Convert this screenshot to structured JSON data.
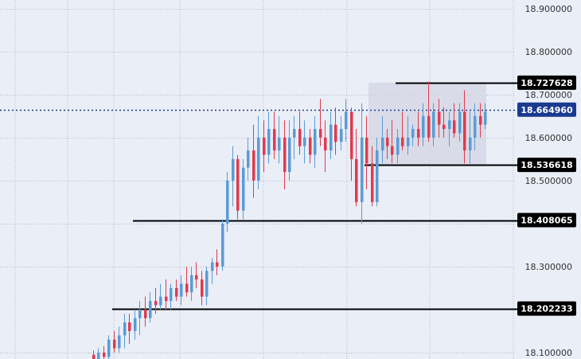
{
  "chart_data": {
    "type": "candlestick",
    "ylim": [
      18.085,
      18.92
    ],
    "grid": true,
    "colors": {
      "up": "#5b9bd5",
      "down": "#e03a4e",
      "background": "#eaeef7",
      "grid": "#b0b8cc",
      "current": "#1a3a8f",
      "level": "#000000",
      "range_box": "#d3d6e3"
    },
    "y_ticks": [
      "18.900000",
      "18.800000",
      "18.700000",
      "18.600000",
      "18.500000",
      "18.400000",
      "18.300000",
      "18.100000"
    ],
    "current_price": "18.664960",
    "levels": [
      {
        "label": "18.727628",
        "value": 18.727628
      },
      {
        "label": "18.536618",
        "value": 18.536618
      },
      {
        "label": "18.408065",
        "value": 18.408065
      },
      {
        "label": "18.202233",
        "value": 18.202233
      }
    ],
    "candles": [
      [
        18.095,
        18.105,
        18.075,
        18.085
      ],
      [
        18.085,
        18.11,
        18.07,
        18.1
      ],
      [
        18.1,
        18.115,
        18.08,
        18.09
      ],
      [
        18.09,
        18.14,
        18.07,
        18.13
      ],
      [
        18.13,
        18.15,
        18.1,
        18.11
      ],
      [
        18.11,
        18.16,
        18.1,
        18.14
      ],
      [
        18.14,
        18.19,
        18.11,
        18.17
      ],
      [
        18.17,
        18.19,
        18.12,
        18.15
      ],
      [
        18.15,
        18.2,
        18.13,
        18.18
      ],
      [
        18.18,
        18.22,
        18.14,
        18.2
      ],
      [
        18.2,
        18.23,
        18.16,
        18.18
      ],
      [
        18.18,
        18.24,
        18.17,
        18.22
      ],
      [
        18.22,
        18.25,
        18.19,
        18.21
      ],
      [
        18.21,
        18.26,
        18.2,
        18.23
      ],
      [
        18.23,
        18.27,
        18.2,
        18.22
      ],
      [
        18.22,
        18.26,
        18.2,
        18.25
      ],
      [
        18.25,
        18.27,
        18.22,
        18.23
      ],
      [
        18.23,
        18.28,
        18.21,
        18.26
      ],
      [
        18.26,
        18.3,
        18.23,
        18.24
      ],
      [
        18.24,
        18.3,
        18.22,
        18.28
      ],
      [
        18.28,
        18.31,
        18.25,
        18.27
      ],
      [
        18.27,
        18.29,
        18.21,
        18.23
      ],
      [
        18.23,
        18.3,
        18.21,
        18.29
      ],
      [
        18.29,
        18.32,
        18.26,
        18.31
      ],
      [
        18.31,
        18.34,
        18.28,
        18.3
      ],
      [
        18.3,
        18.41,
        18.29,
        18.4
      ],
      [
        18.4,
        18.52,
        18.38,
        18.5
      ],
      [
        18.5,
        18.58,
        18.44,
        18.55
      ],
      [
        18.55,
        18.56,
        18.41,
        18.43
      ],
      [
        18.43,
        18.55,
        18.41,
        18.53
      ],
      [
        18.53,
        18.6,
        18.5,
        18.57
      ],
      [
        18.57,
        18.63,
        18.46,
        18.5
      ],
      [
        18.5,
        18.65,
        18.48,
        18.6
      ],
      [
        18.6,
        18.64,
        18.52,
        18.56
      ],
      [
        18.56,
        18.66,
        18.54,
        18.62
      ],
      [
        18.62,
        18.66,
        18.55,
        18.57
      ],
      [
        18.57,
        18.65,
        18.54,
        18.6
      ],
      [
        18.6,
        18.64,
        18.48,
        18.52
      ],
      [
        18.52,
        18.64,
        18.5,
        18.6
      ],
      [
        18.6,
        18.65,
        18.55,
        18.62
      ],
      [
        18.62,
        18.66,
        18.56,
        18.58
      ],
      [
        18.58,
        18.64,
        18.54,
        18.6
      ],
      [
        18.6,
        18.62,
        18.54,
        18.56
      ],
      [
        18.56,
        18.65,
        18.53,
        18.62
      ],
      [
        18.62,
        18.69,
        18.58,
        18.6
      ],
      [
        18.6,
        18.64,
        18.52,
        18.57
      ],
      [
        18.57,
        18.66,
        18.55,
        18.63
      ],
      [
        18.63,
        18.67,
        18.56,
        18.59
      ],
      [
        18.59,
        18.65,
        18.57,
        18.62
      ],
      [
        18.62,
        18.69,
        18.59,
        18.66
      ],
      [
        18.66,
        18.67,
        18.5,
        18.55
      ],
      [
        18.55,
        18.62,
        18.44,
        18.45
      ],
      [
        18.45,
        18.68,
        18.4,
        18.6
      ],
      [
        18.6,
        18.65,
        18.48,
        18.54
      ],
      [
        18.54,
        18.58,
        18.44,
        18.45
      ],
      [
        18.45,
        18.6,
        18.44,
        18.57
      ],
      [
        18.57,
        18.65,
        18.54,
        18.6
      ],
      [
        18.6,
        18.62,
        18.55,
        18.58
      ],
      [
        18.58,
        18.64,
        18.54,
        18.56
      ],
      [
        18.56,
        18.62,
        18.54,
        18.6
      ],
      [
        18.6,
        18.66,
        18.57,
        18.58
      ],
      [
        18.58,
        18.65,
        18.56,
        18.6
      ],
      [
        18.6,
        18.63,
        18.58,
        18.62
      ],
      [
        18.62,
        18.66,
        18.58,
        18.6
      ],
      [
        18.6,
        18.68,
        18.58,
        18.65
      ],
      [
        18.65,
        18.73,
        18.59,
        18.6
      ],
      [
        18.6,
        18.68,
        18.58,
        18.66
      ],
      [
        18.66,
        18.69,
        18.6,
        18.63
      ],
      [
        18.63,
        18.67,
        18.6,
        18.62
      ],
      [
        18.62,
        18.66,
        18.58,
        18.64
      ],
      [
        18.64,
        18.68,
        18.6,
        18.61
      ],
      [
        18.61,
        18.68,
        18.59,
        18.66
      ],
      [
        18.66,
        18.71,
        18.54,
        18.57
      ],
      [
        18.57,
        18.66,
        18.54,
        18.6
      ],
      [
        18.6,
        18.68,
        18.57,
        18.65
      ],
      [
        18.65,
        18.68,
        18.6,
        18.63
      ],
      [
        18.63,
        18.68,
        18.62,
        18.66
      ]
    ]
  }
}
